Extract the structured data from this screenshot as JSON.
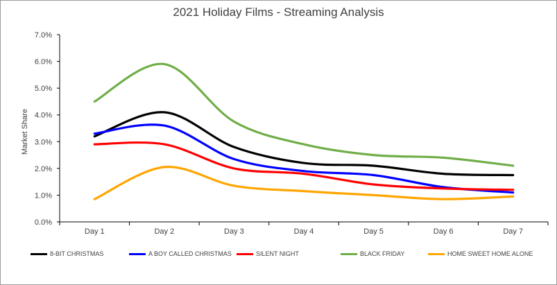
{
  "chart_data": {
    "type": "line",
    "title": "2021 Holiday Films - Streaming Analysis",
    "xlabel": "",
    "ylabel": "Market Share",
    "categories": [
      "Day 1",
      "Day 2",
      "Day 3",
      "Day 4",
      "Day 5",
      "Day 6",
      "Day 7"
    ],
    "ylim": [
      0,
      0.07
    ],
    "yticks": [
      "0.0%",
      "1.0%",
      "2.0%",
      "3.0%",
      "4.0%",
      "5.0%",
      "6.0%",
      "7.0%"
    ],
    "y_format": "percent",
    "grid": false,
    "legend_position": "bottom",
    "smooth": true,
    "series": [
      {
        "name": "8-BIT CHRISTMAS",
        "color": "#000000",
        "values": [
          0.032,
          0.041,
          0.028,
          0.022,
          0.021,
          0.018,
          0.0175
        ]
      },
      {
        "name": "A BOY CALLED CHRISTMAS",
        "color": "#0000ff",
        "values": [
          0.033,
          0.036,
          0.0235,
          0.019,
          0.0175,
          0.013,
          0.011
        ]
      },
      {
        "name": "SILENT NIGHT",
        "color": "#ff0000",
        "values": [
          0.029,
          0.029,
          0.02,
          0.018,
          0.014,
          0.0125,
          0.012
        ]
      },
      {
        "name": "BLACK FRIDAY",
        "color": "#70ad47",
        "values": [
          0.045,
          0.059,
          0.0375,
          0.029,
          0.025,
          0.024,
          0.021
        ]
      },
      {
        "name": "HOME SWEET HOME ALONE",
        "color": "#ffa500",
        "values": [
          0.0085,
          0.0205,
          0.0135,
          0.0115,
          0.01,
          0.0085,
          0.0095
        ]
      }
    ]
  }
}
